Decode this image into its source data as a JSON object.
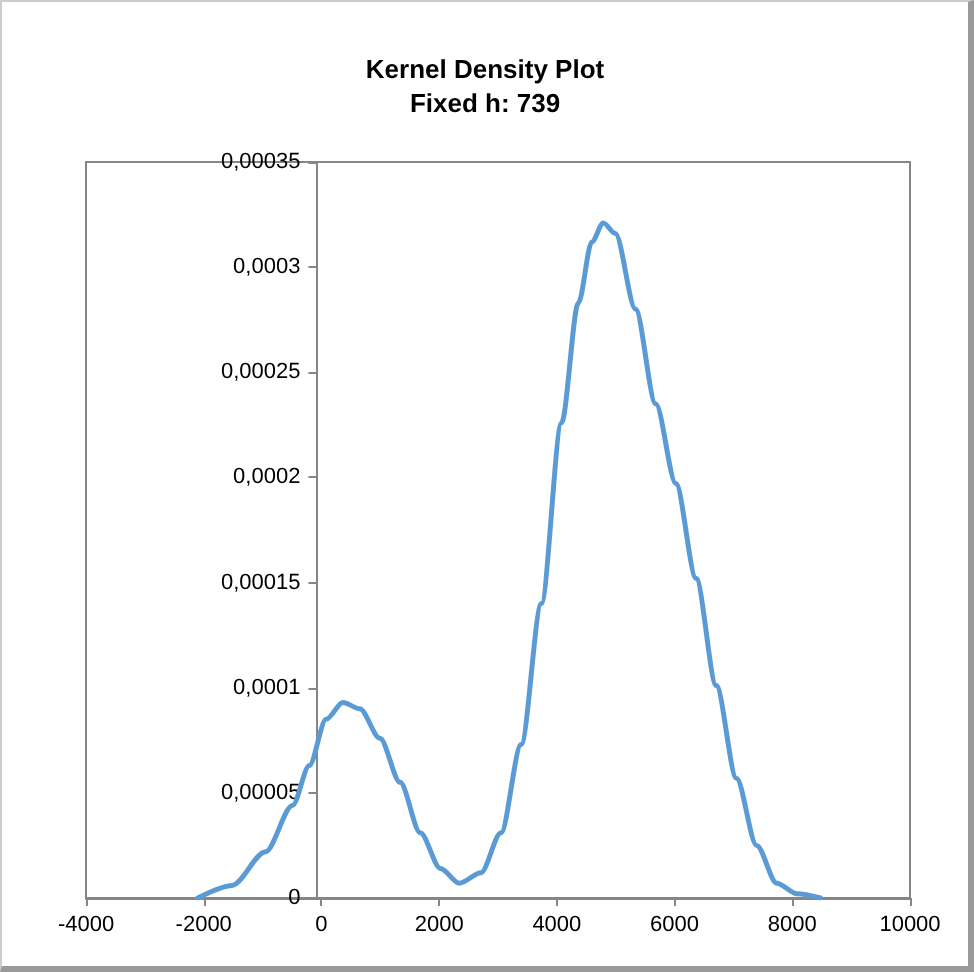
{
  "chart_data": {
    "type": "line",
    "title": "Kernel Density Plot",
    "subtitle": "Fixed h: 739",
    "x": [
      -2100,
      -1520,
      -949,
      -491,
      -206,
      80,
      366,
      651,
      994,
      1337,
      1680,
      2023,
      2343,
      2709,
      3051,
      3394,
      3737,
      4080,
      4366,
      4594,
      4789,
      4994,
      5337,
      5680,
      6023,
      6366,
      6709,
      7051,
      7394,
      7737,
      8080,
      8480
    ],
    "series": [
      {
        "color": "#5b9bd5",
        "values": [
          0,
          6e-06,
          2.2e-05,
          4.4e-05,
          6.3e-05,
          8.5e-05,
          9.3e-05,
          9e-05,
          7.6e-05,
          5.5e-05,
          3.1e-05,
          1.4e-05,
          7e-06,
          1.2e-05,
          3.1e-05,
          7.3e-05,
          0.00014,
          0.000226,
          0.000283,
          0.000312,
          0.000321,
          0.000316,
          0.00028,
          0.000235,
          0.000197,
          0.000152,
          0.000101,
          5.7e-05,
          2.5e-05,
          7e-06,
          2e-06,
          0
        ]
      }
    ],
    "xlim": [
      -4000,
      10000
    ],
    "xticks": [
      -4000,
      -2000,
      0,
      2000,
      4000,
      6000,
      8000,
      10000
    ],
    "ylim": [
      0,
      0.00035
    ],
    "yticks": [
      0,
      {
        "value": 5e-05,
        "label": "0,00005"
      },
      {
        "value": 0.0001,
        "label": "0,0001"
      },
      {
        "value": 0.00015,
        "label": "0,00015"
      },
      {
        "value": 0.0002,
        "label": "0,0002"
      },
      {
        "value": 0.00025,
        "label": "0,00025"
      },
      {
        "value": 0.0003,
        "label": "0,0003"
      },
      {
        "value": 0.00035,
        "label": "0,00035"
      }
    ],
    "grid": false,
    "marker": "none",
    "line_style": "solid"
  }
}
